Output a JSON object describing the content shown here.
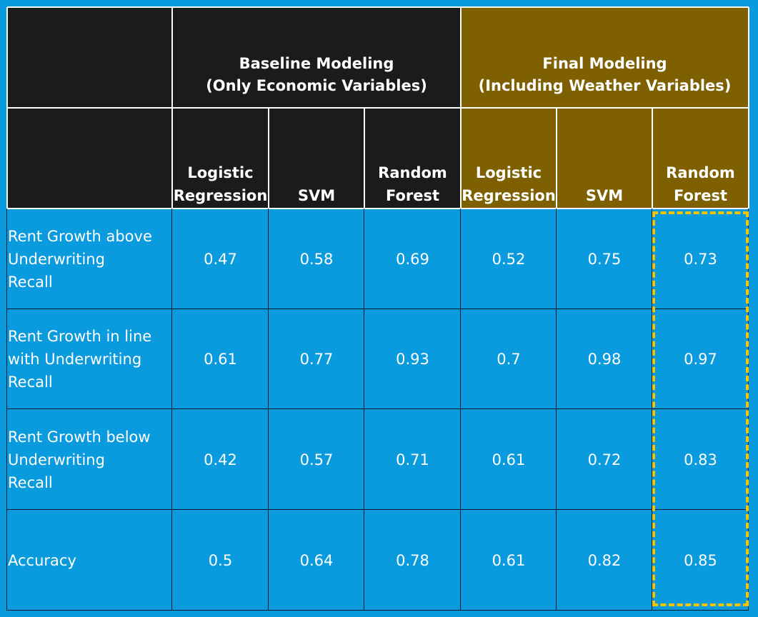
{
  "chart_data": {
    "type": "table",
    "groups": [
      {
        "line1": "Baseline Modeling",
        "line2": "(Only Economic Variables)",
        "color": "#1b1b1b"
      },
      {
        "line1": "Final Modeling",
        "line2": "(Including Weather Variables)",
        "color": "#7f6000"
      }
    ],
    "columns": [
      {
        "group": 0,
        "line1": "Logistic",
        "line2": "Regression"
      },
      {
        "group": 0,
        "line1": "",
        "line2": "SVM"
      },
      {
        "group": 0,
        "line1": "Random",
        "line2": "Forest"
      },
      {
        "group": 1,
        "line1": "Logistic",
        "line2": "Regression"
      },
      {
        "group": 1,
        "line1": "",
        "line2": "SVM"
      },
      {
        "group": 1,
        "line1": "Random",
        "line2": "Forest"
      }
    ],
    "rows": [
      {
        "label_lines": [
          "Rent Growth above",
          "Underwriting",
          "Recall"
        ],
        "values": [
          "0.47",
          "0.58",
          "0.69",
          "0.52",
          "0.75",
          "0.73"
        ]
      },
      {
        "label_lines": [
          "Rent Growth in line",
          "with Underwriting",
          "Recall"
        ],
        "values": [
          "0.61",
          "0.77",
          "0.93",
          "0.7",
          "0.98",
          "0.97"
        ]
      },
      {
        "label_lines": [
          "Rent Growth below",
          "Underwriting",
          "Recall"
        ],
        "values": [
          "0.42",
          "0.57",
          "0.71",
          "0.61",
          "0.72",
          "0.83"
        ]
      },
      {
        "label_lines": [
          "Accuracy"
        ],
        "values": [
          "0.5",
          "0.64",
          "0.78",
          "0.61",
          "0.82",
          "0.85"
        ]
      }
    ],
    "highlighted_column": 5,
    "highlight_color": "#f5c400",
    "body_color": "#0a9ade"
  }
}
